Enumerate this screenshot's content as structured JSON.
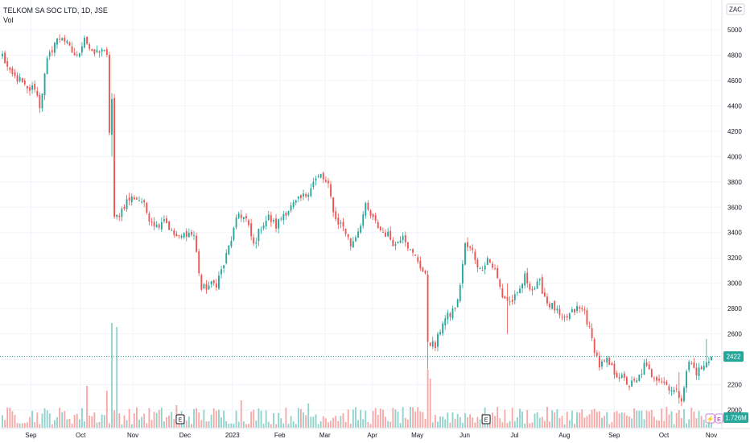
{
  "header": {
    "symbol_title": "TELKOM SA SOC LTD, 1D, JSE",
    "volume_label": "Vol"
  },
  "axis": {
    "currency": "ZAC",
    "last_price_label": "2422",
    "volume_label": "1.726M",
    "earnings_marker": "E"
  },
  "colors": {
    "up": "#26a69a",
    "down": "#ef5350",
    "up_vol": "#92d2cc",
    "down_vol": "#f7a9a7",
    "last_price": "#26a69a",
    "volume_tag": "#26a69a"
  },
  "chart_data": {
    "type": "candlestick",
    "ylim": [
      1950,
      5150
    ],
    "y_ticks": [
      2000,
      2200,
      2400,
      2600,
      2800,
      3000,
      3200,
      3400,
      3600,
      3800,
      4000,
      4200,
      4400,
      4600,
      4800,
      5000
    ],
    "x_ticks": [
      "Sep",
      "Oct",
      "Nov",
      "Dec",
      "2023",
      "Feb",
      "Mar",
      "Apr",
      "May",
      "Jun",
      "Jul",
      "Aug",
      "Sep",
      "Oct",
      "Nov"
    ],
    "last_price": 2422,
    "anchors": [
      [
        0,
        4800
      ],
      [
        3,
        4650
      ],
      [
        7,
        4600
      ],
      [
        10,
        4520
      ],
      [
        13,
        4550
      ],
      [
        15,
        4400
      ],
      [
        18,
        4750
      ],
      [
        21,
        4900
      ],
      [
        24,
        4950
      ],
      [
        27,
        4850
      ],
      [
        30,
        4780
      ],
      [
        33,
        4950
      ],
      [
        36,
        4800
      ],
      [
        40,
        4850
      ],
      [
        42,
        4780
      ],
      [
        43,
        4200
      ],
      [
        44,
        4450
      ],
      [
        45,
        3500
      ],
      [
        47,
        3550
      ],
      [
        50,
        3650
      ],
      [
        53,
        3680
      ],
      [
        56,
        3650
      ],
      [
        59,
        3520
      ],
      [
        62,
        3450
      ],
      [
        65,
        3520
      ],
      [
        68,
        3400
      ],
      [
        71,
        3350
      ],
      [
        74,
        3400
      ],
      [
        77,
        3380
      ],
      [
        80,
        2950
      ],
      [
        83,
        2980
      ],
      [
        86,
        3000
      ],
      [
        89,
        3150
      ],
      [
        92,
        3350
      ],
      [
        95,
        3550
      ],
      [
        98,
        3500
      ],
      [
        101,
        3300
      ],
      [
        104,
        3450
      ],
      [
        107,
        3520
      ],
      [
        110,
        3450
      ],
      [
        113,
        3550
      ],
      [
        116,
        3600
      ],
      [
        119,
        3650
      ],
      [
        122,
        3700
      ],
      [
        125,
        3800
      ],
      [
        128,
        3850
      ],
      [
        131,
        3760
      ],
      [
        134,
        3500
      ],
      [
        137,
        3450
      ],
      [
        140,
        3300
      ],
      [
        143,
        3420
      ],
      [
        146,
        3600
      ],
      [
        149,
        3500
      ],
      [
        152,
        3420
      ],
      [
        155,
        3380
      ],
      [
        158,
        3300
      ],
      [
        161,
        3400
      ],
      [
        164,
        3250
      ],
      [
        167,
        3180
      ],
      [
        170,
        3050
      ],
      [
        171,
        2550
      ],
      [
        174,
        2500
      ],
      [
        177,
        2700
      ],
      [
        180,
        2750
      ],
      [
        183,
        2850
      ],
      [
        186,
        3300
      ],
      [
        189,
        3250
      ],
      [
        192,
        3100
      ],
      [
        195,
        3200
      ],
      [
        198,
        3100
      ],
      [
        201,
        2900
      ],
      [
        204,
        2850
      ],
      [
        207,
        2900
      ],
      [
        210,
        3050
      ],
      [
        213,
        2950
      ],
      [
        216,
        3000
      ],
      [
        219,
        2850
      ],
      [
        222,
        2800
      ],
      [
        225,
        2700
      ],
      [
        228,
        2750
      ],
      [
        231,
        2800
      ],
      [
        234,
        2780
      ],
      [
        237,
        2550
      ],
      [
        240,
        2350
      ],
      [
        243,
        2380
      ],
      [
        246,
        2300
      ],
      [
        249,
        2250
      ],
      [
        252,
        2200
      ],
      [
        255,
        2220
      ],
      [
        258,
        2350
      ],
      [
        261,
        2280
      ],
      [
        264,
        2250
      ],
      [
        267,
        2200
      ],
      [
        270,
        2150
      ],
      [
        273,
        2100
      ],
      [
        276,
        2380
      ],
      [
        279,
        2300
      ],
      [
        282,
        2340
      ],
      [
        285,
        2422
      ]
    ],
    "spikes": [
      {
        "index": 44,
        "low": 4000,
        "high": 4500
      },
      {
        "index": 43,
        "low": 4200,
        "high": 4780
      },
      {
        "index": 171,
        "low": 2320,
        "high": 2850
      },
      {
        "index": 203,
        "low": 2600,
        "high": 3000
      },
      {
        "index": 272,
        "low": 2050,
        "high": 2300
      },
      {
        "index": 283,
        "low": 2360,
        "high": 2560
      }
    ],
    "volume_spikes": [
      {
        "index": 44,
        "value": 13
      },
      {
        "index": 46,
        "value": 12.5
      },
      {
        "index": 34,
        "value": 5.2
      },
      {
        "index": 42,
        "value": 4.6
      },
      {
        "index": 171,
        "value": 7.2
      },
      {
        "index": 172,
        "value": 6.1
      },
      {
        "index": 96,
        "value": 3.4
      },
      {
        "index": 123,
        "value": 3.0
      },
      {
        "index": 70,
        "value": 2.8
      }
    ],
    "earnings_indices": [
      75,
      204
    ],
    "volume_max": 14
  }
}
